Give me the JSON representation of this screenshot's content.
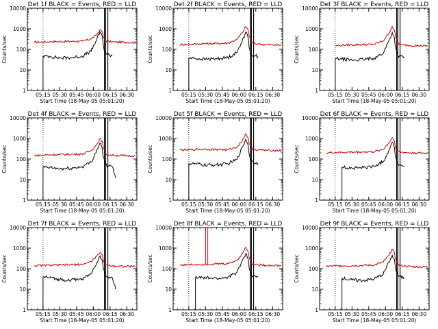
{
  "figure": {
    "ytick_labels": [
      "10000",
      "1000",
      "100",
      "10",
      "1"
    ],
    "xtick_labels": [
      "05:15",
      "05:30",
      "05:45",
      "06:00",
      "06:15",
      "06:30"
    ]
  },
  "colors": {
    "events": "#000000",
    "lld": "#cc0000",
    "frame": "#000000"
  },
  "chart_data": [
    {
      "type": "line",
      "title": "Det 1f BLACK = Events, RED = LLD",
      "xlabel": "Start Time (18-May-05 05:01:20)",
      "ylabel": "Counts/sec",
      "yscale": "log",
      "ylim": [
        1,
        10000
      ],
      "xlim": [
        "05:01",
        "06:39"
      ],
      "x": [
        "05:07",
        "05:15",
        "05:21",
        "05:30",
        "05:40",
        "05:50",
        "05:58",
        "06:03",
        "06:06",
        "06:08",
        "06:09",
        "06:11",
        "06:13",
        "06:17",
        "06:20",
        "06:30",
        "06:38"
      ],
      "series": [
        {
          "name": "LLD",
          "color": "#cc0000",
          "values": [
            220,
            230,
            235,
            240,
            245,
            250,
            320,
            520,
            900,
            700,
            400,
            260,
            240,
            235,
            225,
            220,
            215
          ]
        },
        {
          "name": "Events",
          "color": "#000000",
          "values": [
            null,
            48,
            45,
            38,
            40,
            46,
            80,
            300,
            700,
            420,
            150,
            65,
            55,
            50,
            null,
            null,
            null
          ]
        }
      ],
      "vlines": [
        {
          "x": "05:15",
          "style": "dotted"
        },
        {
          "x": "06:10",
          "style": "solid"
        },
        {
          "x": "06:11",
          "style": "solid"
        },
        {
          "x": "06:13",
          "style": "solid"
        }
      ]
    },
    {
      "type": "line",
      "title": "Det 2f BLACK = Events, RED = LLD",
      "xlabel": "Start Time (18-May-05 05:01:20)",
      "ylabel": "Counts/sec",
      "yscale": "log",
      "ylim": [
        1,
        10000
      ],
      "xlim": [
        "05:01",
        "06:39"
      ],
      "x": [
        "05:07",
        "05:15",
        "05:21",
        "05:30",
        "05:40",
        "05:50",
        "05:58",
        "06:03",
        "06:06",
        "06:08",
        "06:09",
        "06:11",
        "06:13",
        "06:17",
        "06:20",
        "06:30",
        "06:38"
      ],
      "series": [
        {
          "name": "LLD",
          "color": "#cc0000",
          "values": [
            170,
            175,
            180,
            190,
            195,
            200,
            300,
            650,
            1300,
            900,
            450,
            230,
            190,
            185,
            175,
            165,
            160
          ]
        },
        {
          "name": "Events",
          "color": "#000000",
          "values": [
            null,
            38,
            36,
            33,
            35,
            40,
            70,
            280,
            700,
            380,
            130,
            55,
            50,
            45,
            null,
            null,
            null
          ]
        }
      ],
      "vlines": [
        {
          "x": "05:15",
          "style": "dotted"
        },
        {
          "x": "06:10",
          "style": "solid"
        },
        {
          "x": "06:11",
          "style": "solid"
        },
        {
          "x": "06:13",
          "style": "solid"
        }
      ]
    },
    {
      "type": "line",
      "title": "Det 3f BLACK = Events, RED = LLD",
      "xlabel": "Start Time (18-May-05 05:01:20)",
      "ylabel": "Counts/sec",
      "yscale": "log",
      "ylim": [
        1,
        10000
      ],
      "xlim": [
        "05:01",
        "06:39"
      ],
      "x": [
        "05:07",
        "05:15",
        "05:21",
        "05:30",
        "05:40",
        "05:50",
        "05:58",
        "06:03",
        "06:06",
        "06:08",
        "06:09",
        "06:11",
        "06:13",
        "06:17",
        "06:20",
        "06:30",
        "06:38"
      ],
      "series": [
        {
          "name": "LLD",
          "color": "#cc0000",
          "values": [
            null,
            150,
            160,
            165,
            170,
            175,
            260,
            600,
            1300,
            850,
            400,
            210,
            170,
            160,
            155,
            150,
            145
          ]
        },
        {
          "name": "Events",
          "color": "#000000",
          "values": [
            null,
            35,
            33,
            30,
            32,
            38,
            65,
            260,
            650,
            350,
            120,
            50,
            45,
            40,
            null,
            null,
            null
          ]
        }
      ],
      "vlines": [
        {
          "x": "05:15",
          "style": "dotted"
        },
        {
          "x": "06:10",
          "style": "solid"
        },
        {
          "x": "06:11",
          "style": "solid"
        },
        {
          "x": "06:13",
          "style": "solid"
        }
      ]
    },
    {
      "type": "line",
      "title": "Det 4f BLACK = Events, RED = LLD",
      "xlabel": "Start Time (18-May-05 05:01:20)",
      "ylabel": "Counts/sec",
      "yscale": "log",
      "ylim": [
        1,
        10000
      ],
      "xlim": [
        "05:01",
        "06:39"
      ],
      "x": [
        "05:07",
        "05:15",
        "05:21",
        "05:30",
        "05:40",
        "05:50",
        "05:58",
        "06:03",
        "06:06",
        "06:08",
        "06:09",
        "06:11",
        "06:13",
        "06:17",
        "06:20",
        "06:30",
        "06:38"
      ],
      "series": [
        {
          "name": "LLD",
          "color": "#cc0000",
          "values": [
            150,
            155,
            160,
            165,
            170,
            175,
            250,
            500,
            1000,
            700,
            350,
            190,
            160,
            155,
            150,
            145,
            140
          ]
        },
        {
          "name": "Events",
          "color": "#000000",
          "values": [
            null,
            40,
            38,
            33,
            35,
            42,
            70,
            260,
            600,
            340,
            120,
            52,
            46,
            42,
            12,
            null,
            null
          ]
        }
      ],
      "vlines": [
        {
          "x": "05:15",
          "style": "dotted"
        },
        {
          "x": "06:10",
          "style": "solid"
        },
        {
          "x": "06:11",
          "style": "solid"
        },
        {
          "x": "06:13",
          "style": "solid"
        }
      ]
    },
    {
      "type": "line",
      "title": "Det 5f BLACK = Events, RED = LLD",
      "xlabel": "Start Time (18-May-05 05:01:20)",
      "ylabel": "Counts/sec",
      "yscale": "log",
      "ylim": [
        1,
        10000
      ],
      "xlim": [
        "05:01",
        "06:39"
      ],
      "x": [
        "05:07",
        "05:15",
        "05:21",
        "05:30",
        "05:40",
        "05:50",
        "05:58",
        "06:03",
        "06:06",
        "06:08",
        "06:09",
        "06:11",
        "06:13",
        "06:17",
        "06:20",
        "06:30",
        "06:38"
      ],
      "series": [
        {
          "name": "LLD",
          "color": "#cc0000",
          "values": [
            270,
            280,
            290,
            300,
            290,
            280,
            380,
            800,
            1700,
            1100,
            550,
            330,
            290,
            280,
            270,
            260,
            255
          ]
        },
        {
          "name": "Events",
          "color": "#000000",
          "values": [
            null,
            60,
            58,
            50,
            52,
            58,
            95,
            380,
            900,
            500,
            180,
            80,
            70,
            62,
            null,
            null,
            null
          ]
        }
      ],
      "vlines": [
        {
          "x": "05:15",
          "style": "dotted"
        },
        {
          "x": "06:10",
          "style": "solid"
        },
        {
          "x": "06:11",
          "style": "solid"
        },
        {
          "x": "06:13",
          "style": "solid"
        }
      ]
    },
    {
      "type": "line",
      "title": "Det 6f BLACK = Events, RED = LLD",
      "xlabel": "Start Time (18-May-05 05:01:20)",
      "ylabel": "Counts/sec",
      "yscale": "log",
      "ylim": [
        1,
        10000
      ],
      "xlim": [
        "05:01",
        "06:39"
      ],
      "x": [
        "05:07",
        "05:15",
        "05:21",
        "05:30",
        "05:40",
        "05:50",
        "05:58",
        "06:03",
        "06:06",
        "06:08",
        "06:09",
        "06:11",
        "06:13",
        "06:17",
        "06:20",
        "06:30",
        "06:38"
      ],
      "series": [
        {
          "name": "LLD",
          "color": "#cc0000",
          "values": [
            200,
            205,
            210,
            215,
            220,
            225,
            300,
            600,
            1100,
            750,
            380,
            240,
            215,
            210,
            200,
            195,
            190
          ]
        },
        {
          "name": "Events",
          "color": "#000000",
          "values": [
            null,
            null,
            40,
            36,
            38,
            44,
            75,
            270,
            650,
            360,
            130,
            58,
            50,
            45,
            null,
            null,
            null
          ]
        }
      ],
      "vlines": [
        {
          "x": "05:15",
          "style": "dotted"
        },
        {
          "x": "06:10",
          "style": "solid"
        },
        {
          "x": "06:11",
          "style": "solid"
        },
        {
          "x": "06:13",
          "style": "solid"
        }
      ]
    },
    {
      "type": "line",
      "title": "Det 7f BLACK = Events, RED = LLD",
      "xlabel": "Start Time (18-May-05 05:01:20)",
      "ylabel": "Counts/sec",
      "yscale": "log",
      "ylim": [
        1,
        10000
      ],
      "xlim": [
        "05:01",
        "06:39"
      ],
      "x": [
        "05:07",
        "05:15",
        "05:21",
        "05:30",
        "05:40",
        "05:50",
        "05:58",
        "06:03",
        "06:06",
        "06:08",
        "06:09",
        "06:11",
        "06:13",
        "06:17",
        "06:20",
        "06:30",
        "06:38"
      ],
      "series": [
        {
          "name": "LLD",
          "color": "#cc0000",
          "values": [
            140,
            145,
            148,
            150,
            155,
            160,
            220,
            400,
            600,
            450,
            260,
            160,
            145,
            140,
            135,
            130,
            128
          ]
        },
        {
          "name": "Events",
          "color": "#000000",
          "values": [
            null,
            40,
            36,
            30,
            28,
            32,
            55,
            200,
            420,
            260,
            100,
            45,
            40,
            36,
            10,
            null,
            null
          ]
        }
      ],
      "vlines": [
        {
          "x": "05:15",
          "style": "dotted"
        },
        {
          "x": "06:10",
          "style": "solid"
        },
        {
          "x": "06:11",
          "style": "solid"
        },
        {
          "x": "06:13",
          "style": "solid"
        }
      ]
    },
    {
      "type": "line",
      "title": "Det 8f BLACK = Events, RED = LLD",
      "xlabel": "Start Time (18-May-05 05:01:20)",
      "ylabel": "Counts/sec",
      "yscale": "log",
      "ylim": [
        1,
        10000
      ],
      "xlim": [
        "05:01",
        "06:39"
      ],
      "x": [
        "05:07",
        "05:15",
        "05:21",
        "05:30",
        "05:35",
        "05:40",
        "05:50",
        "05:58",
        "06:03",
        "06:06",
        "06:08",
        "06:09",
        "06:11",
        "06:13",
        "06:17",
        "06:20",
        "06:30",
        "06:38"
      ],
      "series": [
        {
          "name": "LLD",
          "color": "#cc0000",
          "values": [
            150,
            155,
            160,
            165,
            165,
            170,
            175,
            250,
            550,
            1100,
            700,
            350,
            190,
            160,
            155,
            150,
            145,
            140
          ]
        },
        {
          "name": "Events",
          "color": "#000000",
          "values": [
            null,
            null,
            38,
            35,
            35,
            33,
            38,
            65,
            250,
            550,
            300,
            110,
            50,
            45,
            40,
            null,
            null,
            null
          ]
        }
      ],
      "spikes": [
        {
          "x": "05:30",
          "value": 10000
        },
        {
          "x": "05:32",
          "value": 10000
        }
      ],
      "vlines": [
        {
          "x": "05:15",
          "style": "dotted"
        },
        {
          "x": "06:10",
          "style": "solid"
        },
        {
          "x": "06:11",
          "style": "solid"
        },
        {
          "x": "06:13",
          "style": "solid"
        }
      ]
    },
    {
      "type": "line",
      "title": "Det 9f BLACK = Events, RED = LLD",
      "xlabel": "Start Time (18-May-05 05:01:20)",
      "ylabel": "Counts/sec",
      "yscale": "log",
      "ylim": [
        1,
        10000
      ],
      "xlim": [
        "05:01",
        "06:39"
      ],
      "x": [
        "05:07",
        "05:15",
        "05:21",
        "05:30",
        "05:40",
        "05:50",
        "05:58",
        "06:03",
        "06:06",
        "06:08",
        "06:09",
        "06:11",
        "06:13",
        "06:17",
        "06:20",
        "06:30",
        "06:38"
      ],
      "series": [
        {
          "name": "LLD",
          "color": "#cc0000",
          "values": [
            130,
            135,
            138,
            140,
            145,
            150,
            210,
            450,
            900,
            600,
            300,
            160,
            140,
            135,
            128,
            122,
            120
          ]
        },
        {
          "name": "Events",
          "color": "#000000",
          "values": [
            null,
            null,
            35,
            28,
            27,
            32,
            55,
            200,
            450,
            270,
            100,
            48,
            40,
            36,
            null,
            null,
            null
          ]
        }
      ],
      "vlines": [
        {
          "x": "05:15",
          "style": "dotted"
        },
        {
          "x": "06:10",
          "style": "solid"
        },
        {
          "x": "06:11",
          "style": "solid"
        },
        {
          "x": "06:13",
          "style": "solid"
        }
      ]
    }
  ]
}
